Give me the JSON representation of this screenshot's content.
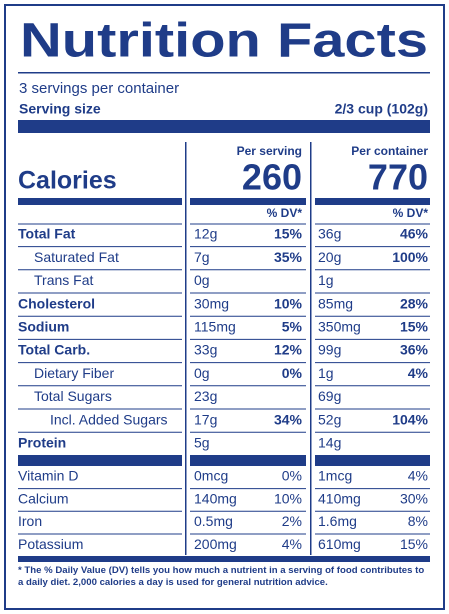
{
  "title": "Nutrition Facts",
  "servings": "3 servings per container",
  "serving_size_label": "Serving size",
  "serving_size": "2/3 cup (102g)",
  "columns": [
    "Per serving",
    "Per container"
  ],
  "calories_label": "Calories",
  "calories": [
    "260",
    "770"
  ],
  "dv_header": "% DV*",
  "nutrients": [
    {
      "name": "Total Fat",
      "bold": true,
      "level": 0,
      "serving": "12g",
      "serving_dv": "15%",
      "container": "36g",
      "container_dv": "46%"
    },
    {
      "name": "Saturated Fat",
      "bold": false,
      "level": 1,
      "serving": "7g",
      "serving_dv": "35%",
      "container": "20g",
      "container_dv": "100%"
    },
    {
      "name": "Trans Fat",
      "bold": false,
      "level": 1,
      "serving": "0g",
      "container": "1g"
    },
    {
      "name": "Cholesterol",
      "bold": true,
      "level": 0,
      "serving": "30mg",
      "serving_dv": "10%",
      "container": "85mg",
      "container_dv": "28%"
    },
    {
      "name": "Sodium",
      "bold": true,
      "level": 0,
      "serving": "115mg",
      "serving_dv": "5%",
      "container": "350mg",
      "container_dv": "15%"
    },
    {
      "name": "Total Carb.",
      "bold": true,
      "level": 0,
      "serving": "33g",
      "serving_dv": "12%",
      "container": "99g",
      "container_dv": "36%"
    },
    {
      "name": "Dietary Fiber",
      "bold": false,
      "level": 1,
      "serving": "0g",
      "serving_dv": "0%",
      "container": "1g",
      "container_dv": "4%"
    },
    {
      "name": "Total Sugars",
      "bold": false,
      "level": 1,
      "serving": "23g",
      "container": "69g"
    },
    {
      "name": "Incl. Added Sugars",
      "bold": false,
      "level": 2,
      "serving": "17g",
      "serving_dv": "34%",
      "container": "52g",
      "container_dv": "104%"
    },
    {
      "name": "Protein",
      "bold": true,
      "level": 0,
      "serving": "5g",
      "container": "14g"
    }
  ],
  "vitamins": [
    {
      "name": "Vitamin D",
      "serving": "0mcg",
      "serving_dv": "0%",
      "container": "1mcg",
      "container_dv": "4%"
    },
    {
      "name": "Calcium",
      "serving": "140mg",
      "serving_dv": "10%",
      "container": "410mg",
      "container_dv": "30%"
    },
    {
      "name": "Iron",
      "serving": "0.5mg",
      "serving_dv": "2%",
      "container": "1.6mg",
      "container_dv": "8%"
    },
    {
      "name": "Potassium",
      "serving": "200mg",
      "serving_dv": "4%",
      "container": "610mg",
      "container_dv": "15%"
    }
  ],
  "footnote": "* The % Daily Value (DV) tells you how much a nutrient in a serving of food contributes to a daily diet. 2,000 calories a day is used for general nutrition advice."
}
